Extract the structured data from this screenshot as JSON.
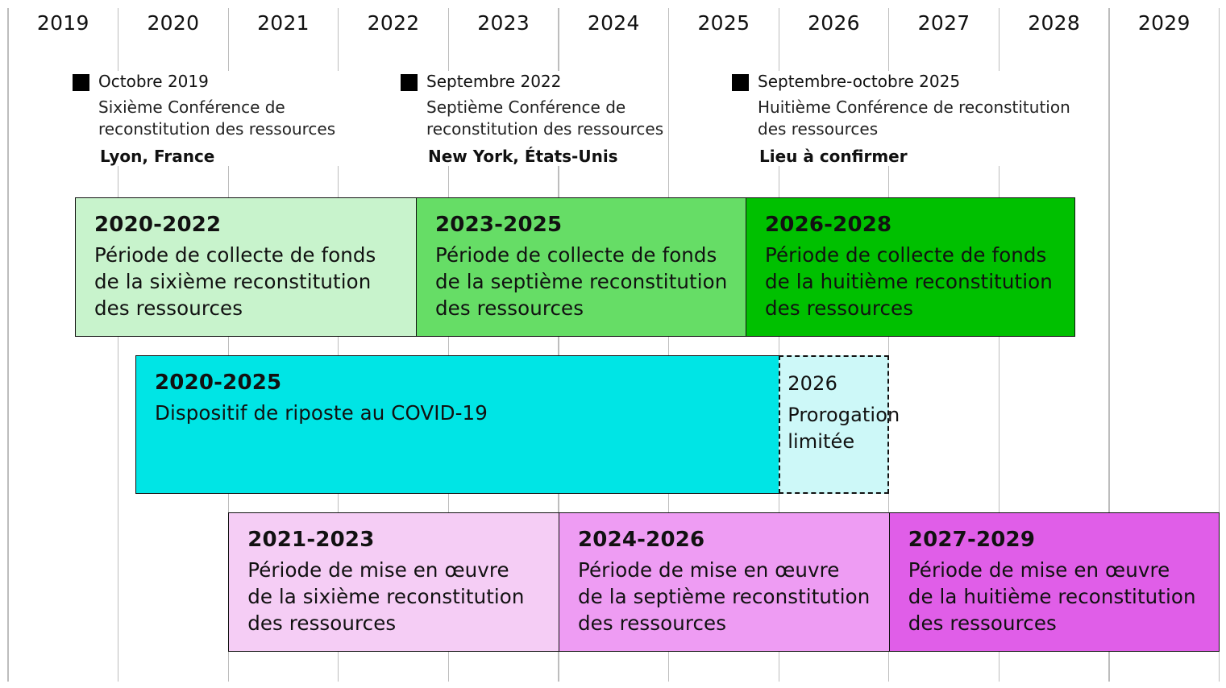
{
  "years": [
    "2019",
    "2020",
    "2021",
    "2022",
    "2023",
    "2024",
    "2025",
    "2026",
    "2027",
    "2028",
    "2029"
  ],
  "events": [
    {
      "year": 2019,
      "date": "Octobre 2019",
      "desc_lines": [
        "Sixième Conférence de",
        "reconstitution des ressources"
      ],
      "place": "Lyon, France"
    },
    {
      "year": 2022,
      "date": "Septembre 2022",
      "desc_lines": [
        "Septième Conférence de",
        "reconstitution des ressources"
      ],
      "place": "New York, États-Unis"
    },
    {
      "year": 2025,
      "date": "Septembre-octobre 2025",
      "desc_lines": [
        "Huitième Conférence de reconstitution",
        "des ressources"
      ],
      "place": "Lieu à confirmer"
    }
  ],
  "rows": [
    {
      "row": "fundraising",
      "blocks": [
        {
          "start": 2020,
          "end": 2022,
          "period": "2020-2022",
          "label_lines": [
            "Période de collecte de fonds",
            "de la sixième reconstitution",
            "des ressources"
          ],
          "color": "#c8f3cc"
        },
        {
          "start": 2023,
          "end": 2025,
          "period": "2023-2025",
          "label_lines": [
            "Période de collecte de fonds",
            "de la septième reconstitution",
            "des ressources"
          ],
          "color": "#66dd66"
        },
        {
          "start": 2026,
          "end": 2028,
          "period": "2026-2028",
          "label_lines": [
            "Période de collecte de fonds",
            "de la huitième reconstitution",
            "des ressources"
          ],
          "color": "#00c000"
        }
      ]
    },
    {
      "row": "covid",
      "blocks": [
        {
          "start": 2020,
          "end": 2025,
          "period": "2020-2025",
          "label_lines": [
            "Dispositif de riposte au COVID-19"
          ],
          "color": "#00e5e5"
        },
        {
          "start": 2026,
          "end": 2026,
          "period": "2026",
          "label_lines": [
            "Prorogation",
            "limitée"
          ],
          "color": "#cdf8f8",
          "dashed": true
        }
      ]
    },
    {
      "row": "implementation",
      "blocks": [
        {
          "start": 2021,
          "end": 2023,
          "period": "2021-2023",
          "label_lines": [
            "Période de mise en œuvre",
            "de la sixième reconstitution",
            "des ressources"
          ],
          "color": "#f5cdf5"
        },
        {
          "start": 2024,
          "end": 2026,
          "period": "2024-2026",
          "label_lines": [
            "Période de mise en œuvre",
            "de la septième reconstitution",
            "des ressources"
          ],
          "color": "#ee9cf3"
        },
        {
          "start": 2027,
          "end": 2029,
          "period": "2027-2029",
          "label_lines": [
            "Période de mise en œuvre",
            "de la huitième reconstitution",
            "des ressources"
          ],
          "color": "#e05ee8"
        }
      ]
    }
  ]
}
